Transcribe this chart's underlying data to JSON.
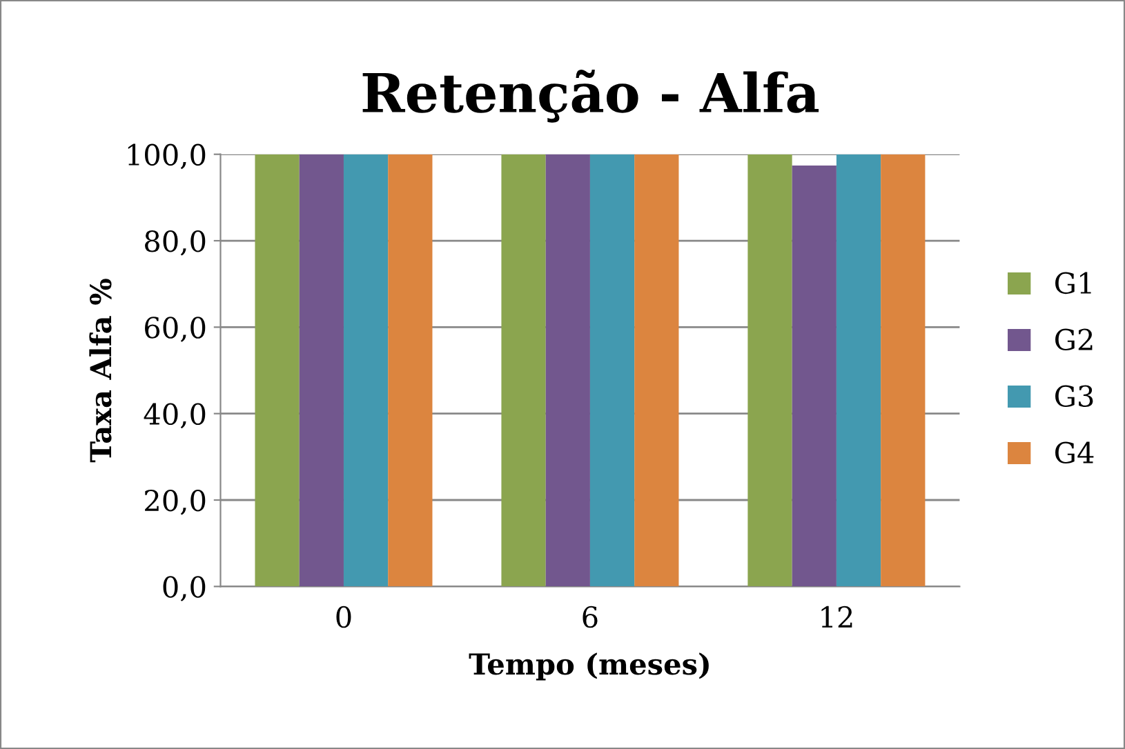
{
  "chart_data": {
    "type": "bar",
    "title": "Retenção - Alfa",
    "xlabel": "Tempo (meses)",
    "ylabel": "Taxa Alfa %",
    "categories": [
      "0",
      "6",
      "12"
    ],
    "series": [
      {
        "name": "G1",
        "color": "#8ba54f",
        "values": [
          100,
          100,
          100
        ]
      },
      {
        "name": "G2",
        "color": "#72578e",
        "values": [
          100,
          100,
          97.4
        ]
      },
      {
        "name": "G3",
        "color": "#4399b0",
        "values": [
          100,
          100,
          100
        ]
      },
      {
        "name": "G4",
        "color": "#dc853f",
        "values": [
          100,
          100,
          100
        ]
      }
    ],
    "ylim": [
      0,
      100
    ],
    "yticks": [
      {
        "value": 0,
        "label": "0,0"
      },
      {
        "value": 20,
        "label": "20,0"
      },
      {
        "value": 40,
        "label": "40,0"
      },
      {
        "value": 60,
        "label": "60,0"
      },
      {
        "value": 80,
        "label": "80,0"
      },
      {
        "value": 100,
        "label": "100,0"
      }
    ],
    "grid": "y",
    "legend": "right"
  }
}
